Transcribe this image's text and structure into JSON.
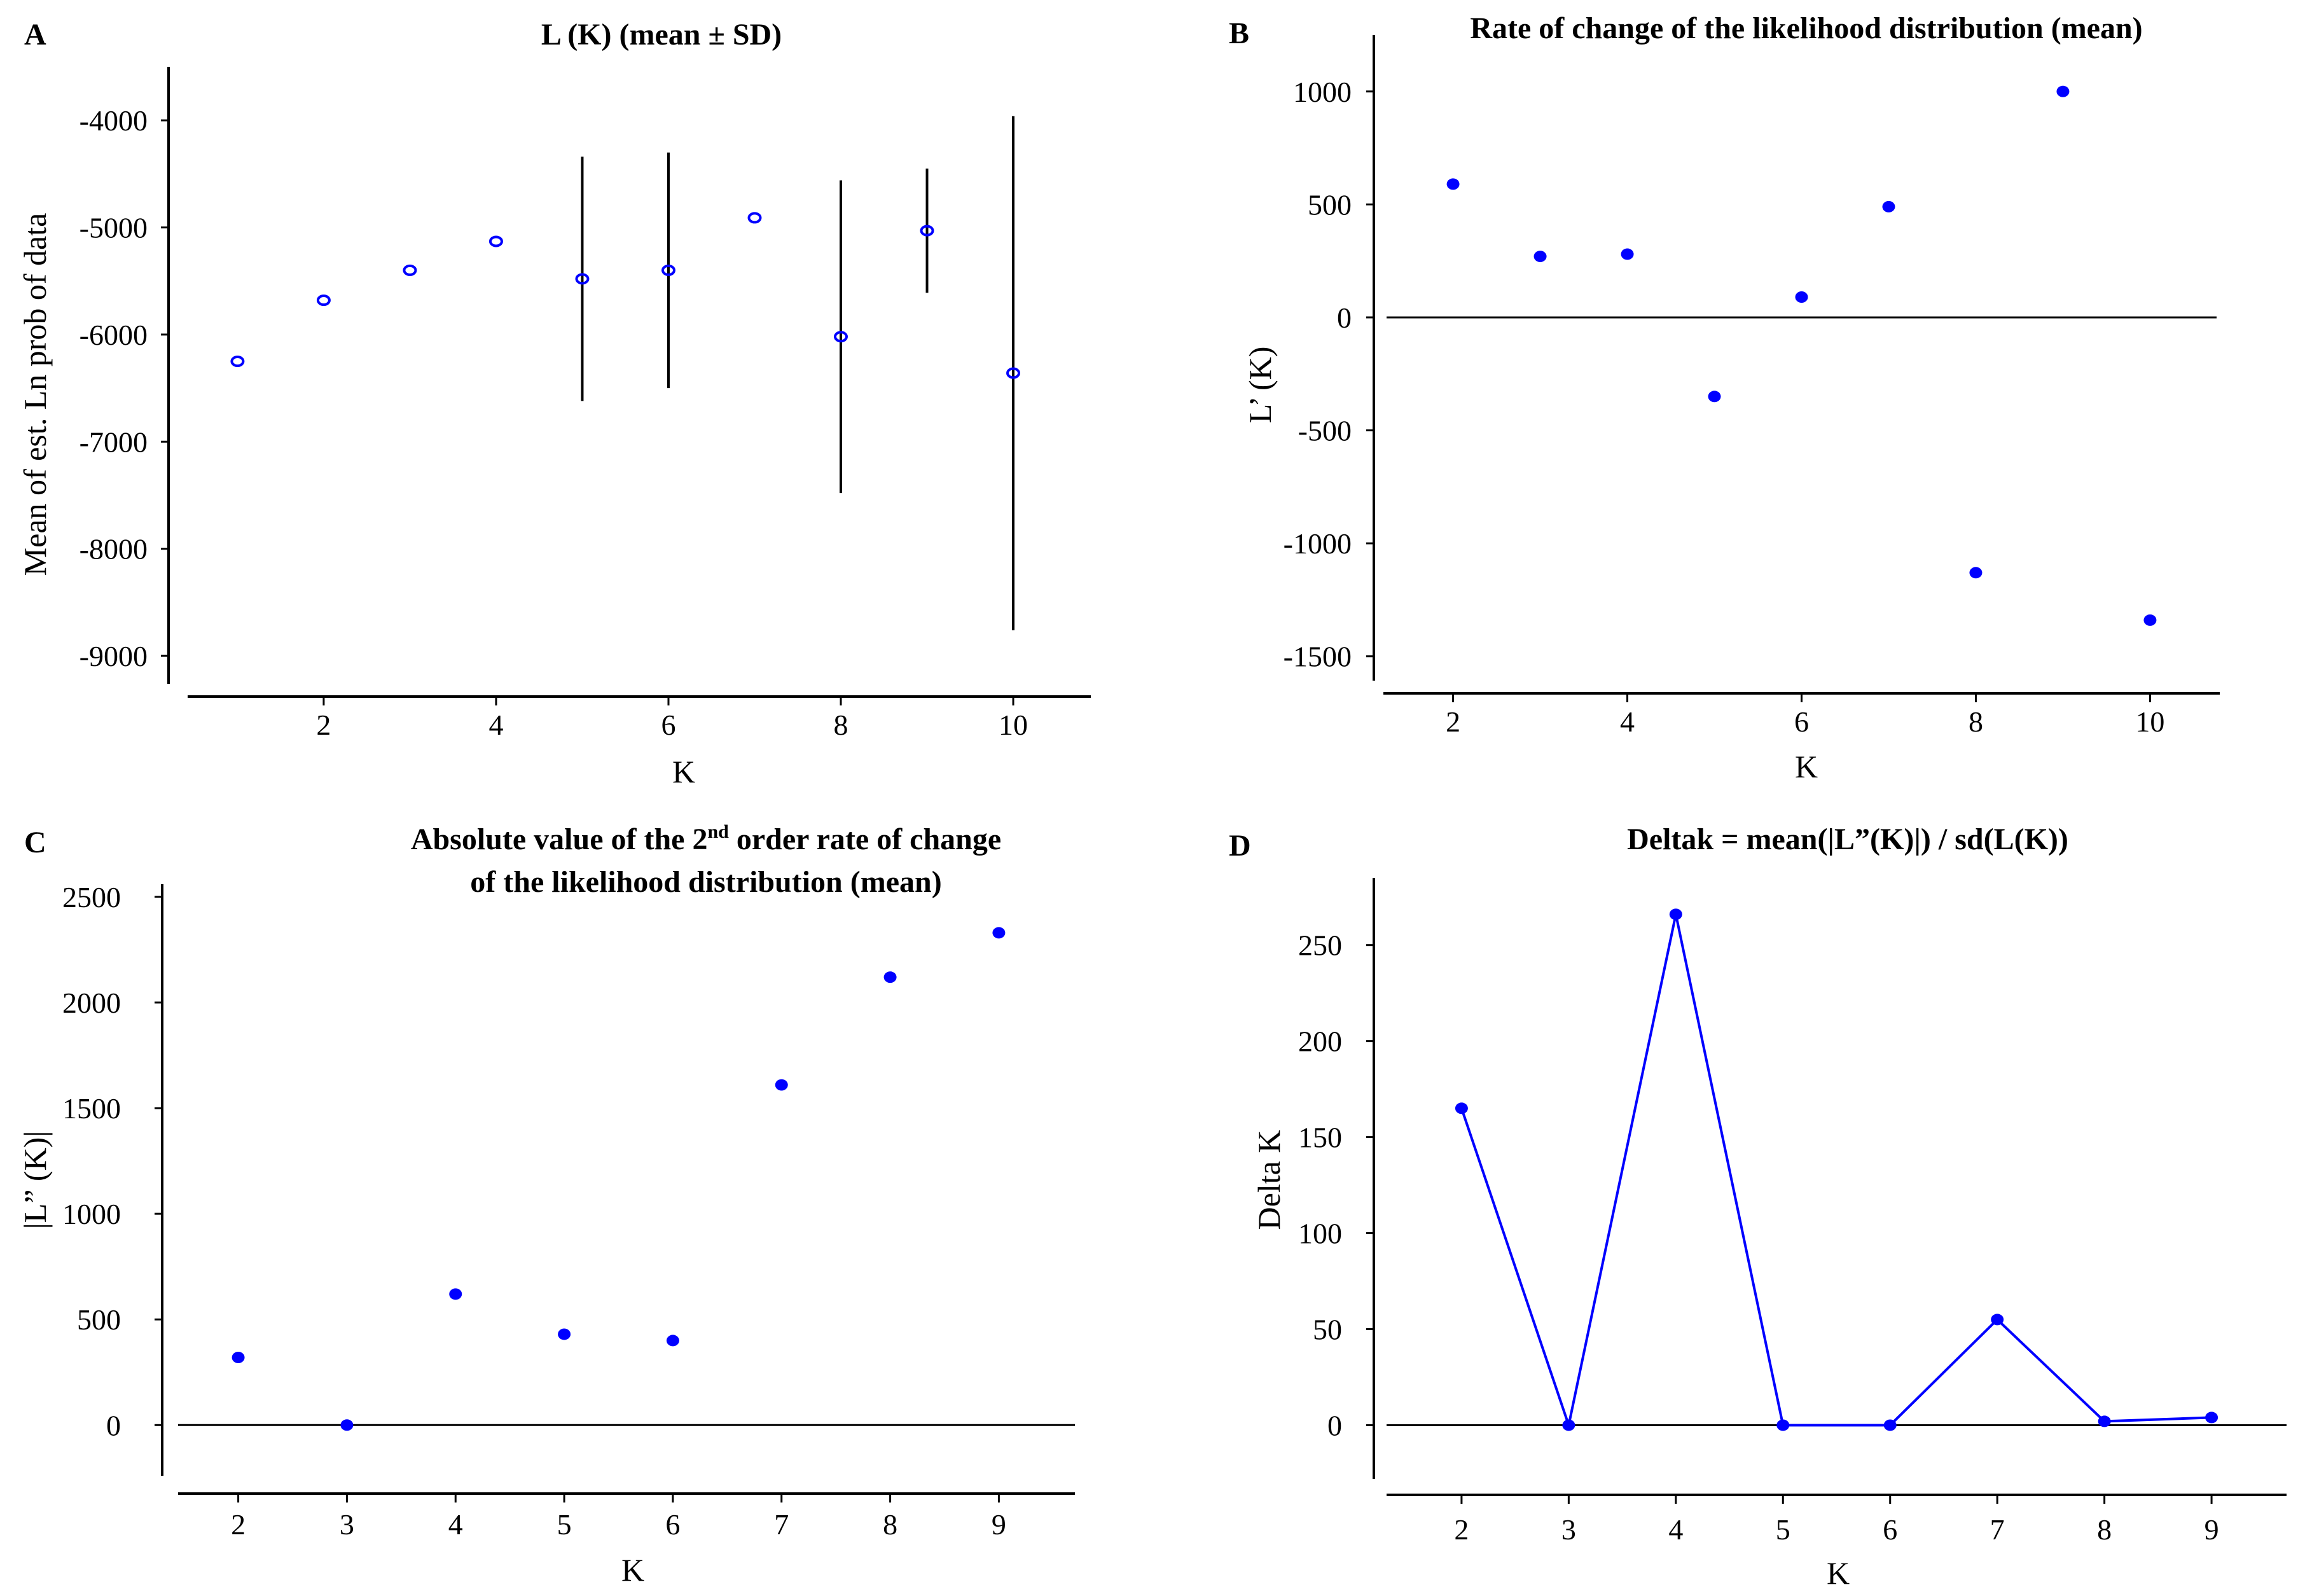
{
  "colors": {
    "marker": "#0000ff",
    "axis": "#000000",
    "errorbar": "#000000"
  },
  "chart_data": [
    {
      "panel": "A",
      "type": "scatter",
      "title": "L (K) (mean ± SD)",
      "xlabel": "K",
      "ylabel": "Mean of est. Ln prob of data",
      "xlim": [
        0.2,
        10.9
      ],
      "ylim": [
        -9350,
        -3500
      ],
      "xticks": [
        2,
        4,
        6,
        8,
        10
      ],
      "yticks": [
        -4000,
        -5000,
        -6000,
        -7000,
        -8000,
        -9000
      ],
      "marker": "open-circle",
      "x": [
        1,
        2,
        3,
        4,
        5,
        6,
        7,
        8,
        9,
        10
      ],
      "y": [
        -6250,
        -5680,
        -5400,
        -5130,
        -5480,
        -5400,
        -4910,
        -6020,
        -5030,
        -6360
      ],
      "sd": [
        0,
        0,
        0,
        0,
        1140,
        1100,
        0,
        1460,
        580,
        2400
      ]
    },
    {
      "panel": "B",
      "type": "scatter",
      "title": "Rate of change of the likelihood distribution (mean)",
      "xlabel": "K",
      "ylabel": "L’ (K)",
      "xlim": [
        1.2,
        10.8
      ],
      "ylim": [
        -1650,
        1250
      ],
      "xticks": [
        2,
        4,
        6,
        8,
        10
      ],
      "yticks": [
        1000,
        500,
        0,
        -500,
        -1000,
        -1500
      ],
      "zero_line": true,
      "marker": "filled-circle",
      "x": [
        2,
        3,
        4,
        5,
        6,
        7,
        8,
        9,
        10
      ],
      "y": [
        590,
        270,
        280,
        -350,
        90,
        490,
        -1130,
        1000,
        -1340
      ]
    },
    {
      "panel": "C",
      "type": "scatter",
      "title_lines": [
        "Absolute value of the 2",
        "nd",
        " order rate of change",
        "of the likelihood distribution (mean)"
      ],
      "xlabel": "K",
      "ylabel": "|L” (K)|",
      "xlim": [
        1.3,
        9.7
      ],
      "ylim": [
        -240,
        2560
      ],
      "xticks": [
        2,
        3,
        4,
        5,
        6,
        7,
        8,
        9
      ],
      "yticks": [
        2500,
        2000,
        1500,
        1000,
        500,
        0
      ],
      "zero_line": true,
      "marker": "filled-circle",
      "x": [
        2,
        3,
        4,
        5,
        6,
        7,
        8,
        9
      ],
      "y": [
        320,
        0,
        620,
        430,
        400,
        1610,
        2120,
        2330
      ]
    },
    {
      "panel": "D",
      "type": "line",
      "title": "Deltak = mean(|L”(K)|) / sd(L(K))",
      "xlabel": "K",
      "ylabel": "Delta K",
      "xlim": [
        1.3,
        9.7
      ],
      "ylim": [
        -28,
        285
      ],
      "xticks": [
        2,
        3,
        4,
        5,
        6,
        7,
        8,
        9
      ],
      "yticks": [
        250,
        200,
        150,
        100,
        50,
        0
      ],
      "zero_line": true,
      "marker": "filled-circle",
      "x": [
        2,
        3,
        4,
        5,
        6,
        7,
        8,
        9
      ],
      "y": [
        165,
        0,
        266,
        0,
        0,
        55,
        2,
        4
      ]
    }
  ]
}
